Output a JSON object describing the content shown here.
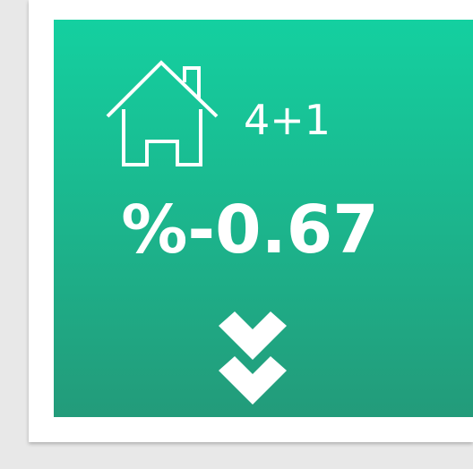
{
  "card": {
    "room_type": "4+1",
    "change": "%-0.67"
  }
}
